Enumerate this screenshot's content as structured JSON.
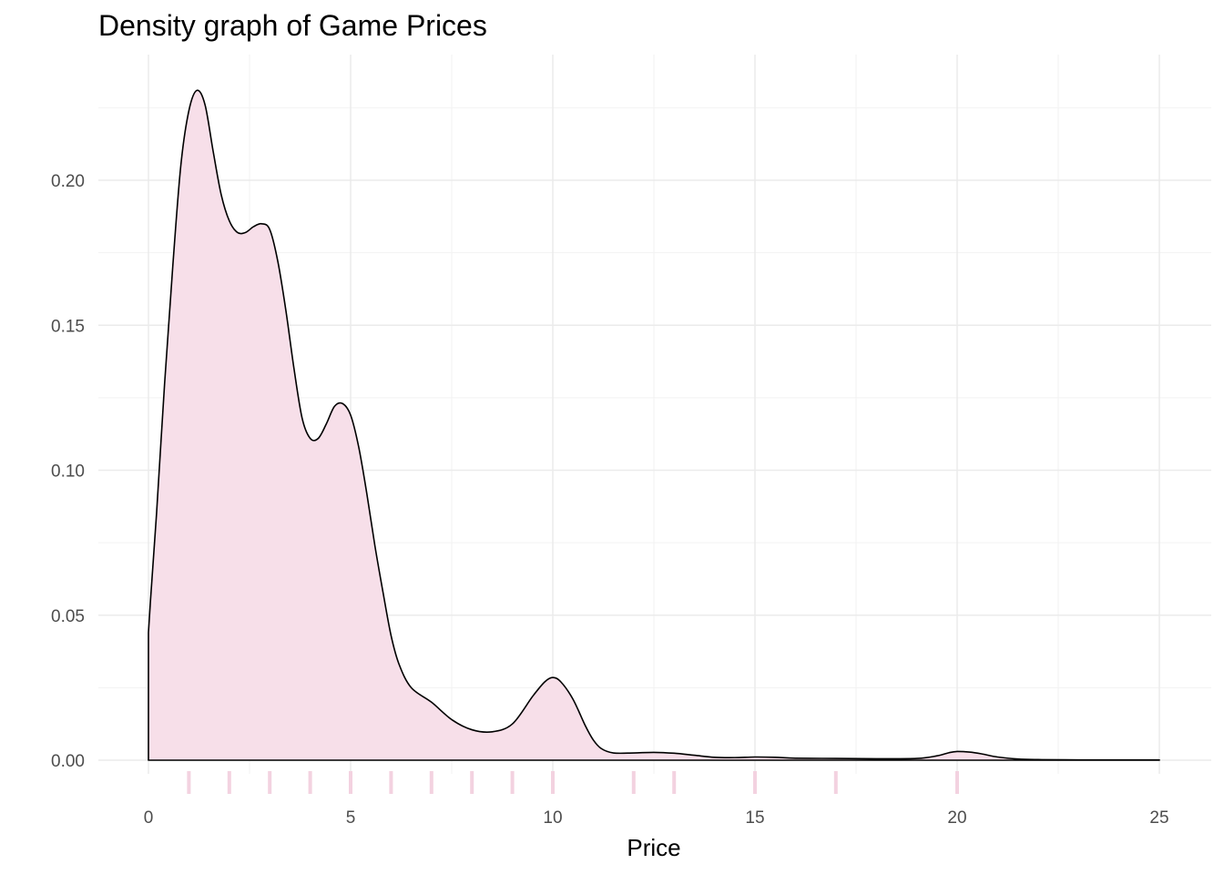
{
  "chart_data": {
    "type": "area",
    "title": "Density graph of Game Prices",
    "xlabel": "Price",
    "ylabel": "",
    "xlim": [
      0,
      25
    ],
    "ylim": [
      0,
      0.23
    ],
    "x_ticks": [
      0,
      5,
      10,
      15,
      20,
      25
    ],
    "x_tick_labels": [
      "0",
      "5",
      "10",
      "15",
      "20",
      "25"
    ],
    "y_ticks": [
      0,
      0.05,
      0.1,
      0.15,
      0.2
    ],
    "y_tick_labels": [
      "0.00",
      "0.05",
      "0.10",
      "0.15",
      "0.20"
    ],
    "grid": true,
    "legend": "none",
    "fill_color": "#f7dfe9",
    "line_color": "#000000",
    "rug_color": "#f3d2e0",
    "density": {
      "x": [
        0,
        0.05,
        0.2,
        0.4,
        0.6,
        0.8,
        1.0,
        1.2,
        1.4,
        1.6,
        1.8,
        2.0,
        2.2,
        2.4,
        2.6,
        2.8,
        3.0,
        3.2,
        3.4,
        3.6,
        3.8,
        4.0,
        4.2,
        4.4,
        4.6,
        4.8,
        5.0,
        5.2,
        5.4,
        5.6,
        5.8,
        6.0,
        6.2,
        6.5,
        7.0,
        7.5,
        8.0,
        8.5,
        9.0,
        9.5,
        9.8,
        10.0,
        10.2,
        10.5,
        10.8,
        11.0,
        11.2,
        11.5,
        12.0,
        12.5,
        13.0,
        13.5,
        14.0,
        14.5,
        15.0,
        15.5,
        16.0,
        17.0,
        18.0,
        19.0,
        19.5,
        19.8,
        20.0,
        20.3,
        20.6,
        21.0,
        21.5,
        22.0,
        23.0,
        24.0,
        25.0
      ],
      "y": [
        0.044,
        0.055,
        0.085,
        0.13,
        0.17,
        0.205,
        0.224,
        0.231,
        0.226,
        0.21,
        0.195,
        0.186,
        0.182,
        0.182,
        0.184,
        0.185,
        0.183,
        0.172,
        0.155,
        0.135,
        0.118,
        0.111,
        0.111,
        0.116,
        0.122,
        0.123,
        0.119,
        0.108,
        0.092,
        0.074,
        0.058,
        0.043,
        0.033,
        0.025,
        0.02,
        0.014,
        0.0105,
        0.0098,
        0.0125,
        0.022,
        0.027,
        0.0285,
        0.027,
        0.021,
        0.012,
        0.007,
        0.004,
        0.0025,
        0.0025,
        0.0027,
        0.0024,
        0.0017,
        0.001,
        0.0009,
        0.0011,
        0.001,
        0.0007,
        0.0006,
        0.0005,
        0.0006,
        0.0015,
        0.0026,
        0.003,
        0.0028,
        0.0022,
        0.0011,
        0.0004,
        0.0002,
        0.0001,
        0.0001,
        0.0001
      ]
    },
    "rug_values": [
      1,
      2,
      3,
      4,
      5,
      6,
      7,
      8,
      9,
      10,
      12,
      13,
      15,
      17,
      20
    ]
  }
}
